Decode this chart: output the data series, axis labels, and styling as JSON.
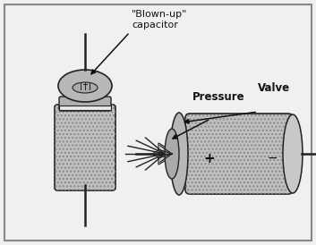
{
  "bg_color": "#f0f0ee",
  "border_color": "#888888",
  "fig_bg": "#f0f0ee",
  "label_blown": "\"Blown-up\"\ncapacitor",
  "label_pressure": "Pressure",
  "label_valve": "Valve",
  "cap_body_color": "#c0c0c0",
  "cap_neck_color": "#b0b0b0",
  "cap_dome_color": "#b8b8b8",
  "cap_shadow_color": "#aaaaaa",
  "end_cap_color": "#c8c8c8",
  "arrow_color": "#111111",
  "text_color": "#111111",
  "outline_color": "#222222",
  "font_size_label": 8,
  "font_size_bold": 8.5
}
